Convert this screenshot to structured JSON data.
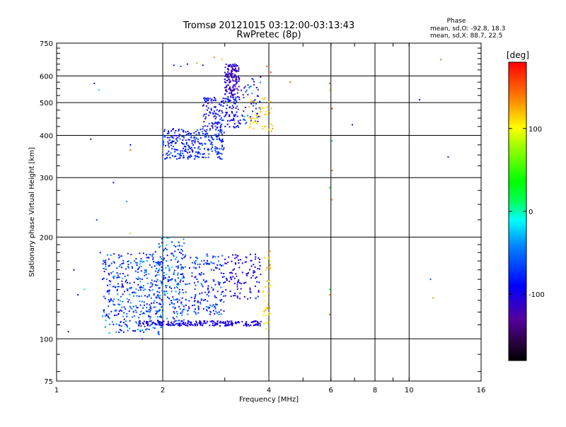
{
  "chart_data": {
    "type": "scatter",
    "title": "Tromsø 20121015 03:12:00-03:13:43",
    "subtitle": "RwPretec (8p)",
    "xlabel": "Frequency [MHz]",
    "ylabel": "Stationary phase Virtual Height [km]",
    "x_scale": "log",
    "y_scale": "log",
    "xlim": [
      1,
      16
    ],
    "ylim": [
      75,
      750
    ],
    "x_ticks": [
      1,
      2,
      4,
      6,
      8,
      10,
      16
    ],
    "y_ticks": [
      75,
      100,
      200,
      300,
      400,
      500,
      600,
      750
    ],
    "grid": true,
    "stats": {
      "heading": "Phase",
      "line_o": "mean, sd,O: -92.8, 18.3",
      "line_x": "mean, sd,X: 88.7, 22.5"
    },
    "colorbar": {
      "label": "[deg]",
      "range": [
        -180,
        180
      ],
      "ticks": [
        -100,
        0,
        100
      ],
      "tick_labels": [
        "-100",
        "0",
        "100"
      ]
    },
    "series": [
      {
        "values": [
          {
            "x": 1.08,
            "y": 105,
            "phase": -110
          },
          {
            "x": 1.12,
            "y": 160,
            "phase": -105
          },
          {
            "x": 1.15,
            "y": 135,
            "phase": -100
          },
          {
            "x": 1.25,
            "y": 390,
            "phase": -120
          },
          {
            "x": 1.28,
            "y": 570,
            "phase": -130
          },
          {
            "x": 1.32,
            "y": 545,
            "phase": -20
          },
          {
            "x": 1.3,
            "y": 225,
            "phase": -60
          },
          {
            "x": 1.33,
            "y": 180,
            "phase": -95
          },
          {
            "x": 1.45,
            "y": 290,
            "phase": -100
          },
          {
            "x": 1.58,
            "y": 255,
            "phase": -40
          },
          {
            "x": 1.62,
            "y": 375,
            "phase": -100
          },
          {
            "x": 1.62,
            "y": 362,
            "phase": 150
          },
          {
            "x": 1.62,
            "y": 205,
            "phase": 120
          },
          {
            "x": 1.75,
            "y": 100,
            "phase": -105
          },
          {
            "x": 1.2,
            "y": 140,
            "phase": -20
          },
          {
            "x": 1.35,
            "y": 150,
            "phase": -90
          },
          {
            "x": 2.8,
            "y": 680,
            "phase": 140
          },
          {
            "x": 2.95,
            "y": 672,
            "phase": 120
          },
          {
            "x": 2.5,
            "y": 655,
            "phase": 130
          },
          {
            "x": 2.15,
            "y": 645,
            "phase": -120
          },
          {
            "x": 2.25,
            "y": 640,
            "phase": -60
          },
          {
            "x": 2.35,
            "y": 650,
            "phase": -110
          },
          {
            "x": 2.6,
            "y": 645,
            "phase": -120
          },
          {
            "x": 3.95,
            "y": 640,
            "phase": 150
          },
          {
            "x": 4.05,
            "y": 615,
            "phase": 160
          },
          {
            "x": 4.6,
            "y": 575,
            "phase": 150
          },
          {
            "x": 5.95,
            "y": 570,
            "phase": 150
          },
          {
            "x": 5.95,
            "y": 545,
            "phase": 110
          },
          {
            "x": 6.05,
            "y": 480,
            "phase": 175
          },
          {
            "x": 6.05,
            "y": 385,
            "phase": -30
          },
          {
            "x": 6.05,
            "y": 315,
            "phase": 150
          },
          {
            "x": 5.95,
            "y": 280,
            "phase": 40
          },
          {
            "x": 6.05,
            "y": 258,
            "phase": 140
          },
          {
            "x": 5.95,
            "y": 140,
            "phase": 20
          },
          {
            "x": 5.95,
            "y": 135,
            "phase": 130
          },
          {
            "x": 5.95,
            "y": 118,
            "phase": 150
          },
          {
            "x": 6.9,
            "y": 430,
            "phase": -110
          },
          {
            "x": 10.7,
            "y": 510,
            "phase": -100
          },
          {
            "x": 12.3,
            "y": 670,
            "phase": 140
          },
          {
            "x": 12.9,
            "y": 345,
            "phase": -120
          },
          {
            "x": 11.5,
            "y": 150,
            "phase": -60
          },
          {
            "x": 11.7,
            "y": 132,
            "phase": 130
          }
        ]
      }
    ],
    "clusters": [
      {
        "x": [
          2.0,
          3.0
        ],
        "y": [
          340,
          420
        ],
        "phase": [
          -105,
          -50
        ],
        "n": 300
      },
      {
        "x": [
          2.6,
          3.3
        ],
        "y": [
          420,
          520
        ],
        "phase": [
          -120,
          -60
        ],
        "n": 170
      },
      {
        "x": [
          3.0,
          3.3
        ],
        "y": [
          520,
          650
        ],
        "phase": [
          -135,
          -95
        ],
        "n": 150
      },
      {
        "x": [
          3.3,
          3.8
        ],
        "y": [
          430,
          600
        ],
        "phase": [
          -130,
          -30
        ],
        "n": 60
      },
      {
        "x": [
          3.5,
          4.1
        ],
        "y": [
          410,
          520
        ],
        "phase": [
          90,
          130
        ],
        "n": 50
      },
      {
        "x": [
          1.35,
          2.0
        ],
        "y": [
          103,
          180
        ],
        "phase": [
          -110,
          -30
        ],
        "n": 400
      },
      {
        "x": [
          1.9,
          2.3
        ],
        "y": [
          110,
          200
        ],
        "phase": [
          -110,
          -20
        ],
        "n": 180
      },
      {
        "x": [
          2.2,
          3.0
        ],
        "y": [
          118,
          178
        ],
        "phase": [
          -110,
          -40
        ],
        "n": 210
      },
      {
        "x": [
          3.0,
          3.8
        ],
        "y": [
          130,
          178
        ],
        "phase": [
          -120,
          -80
        ],
        "n": 110
      },
      {
        "x": [
          1.7,
          3.8
        ],
        "y": [
          109,
          113
        ],
        "phase": [
          -115,
          -85
        ],
        "n": 220
      },
      {
        "x": [
          3.85,
          4.05
        ],
        "y": [
          105,
          185
        ],
        "phase": [
          90,
          130
        ],
        "n": 45
      }
    ]
  }
}
